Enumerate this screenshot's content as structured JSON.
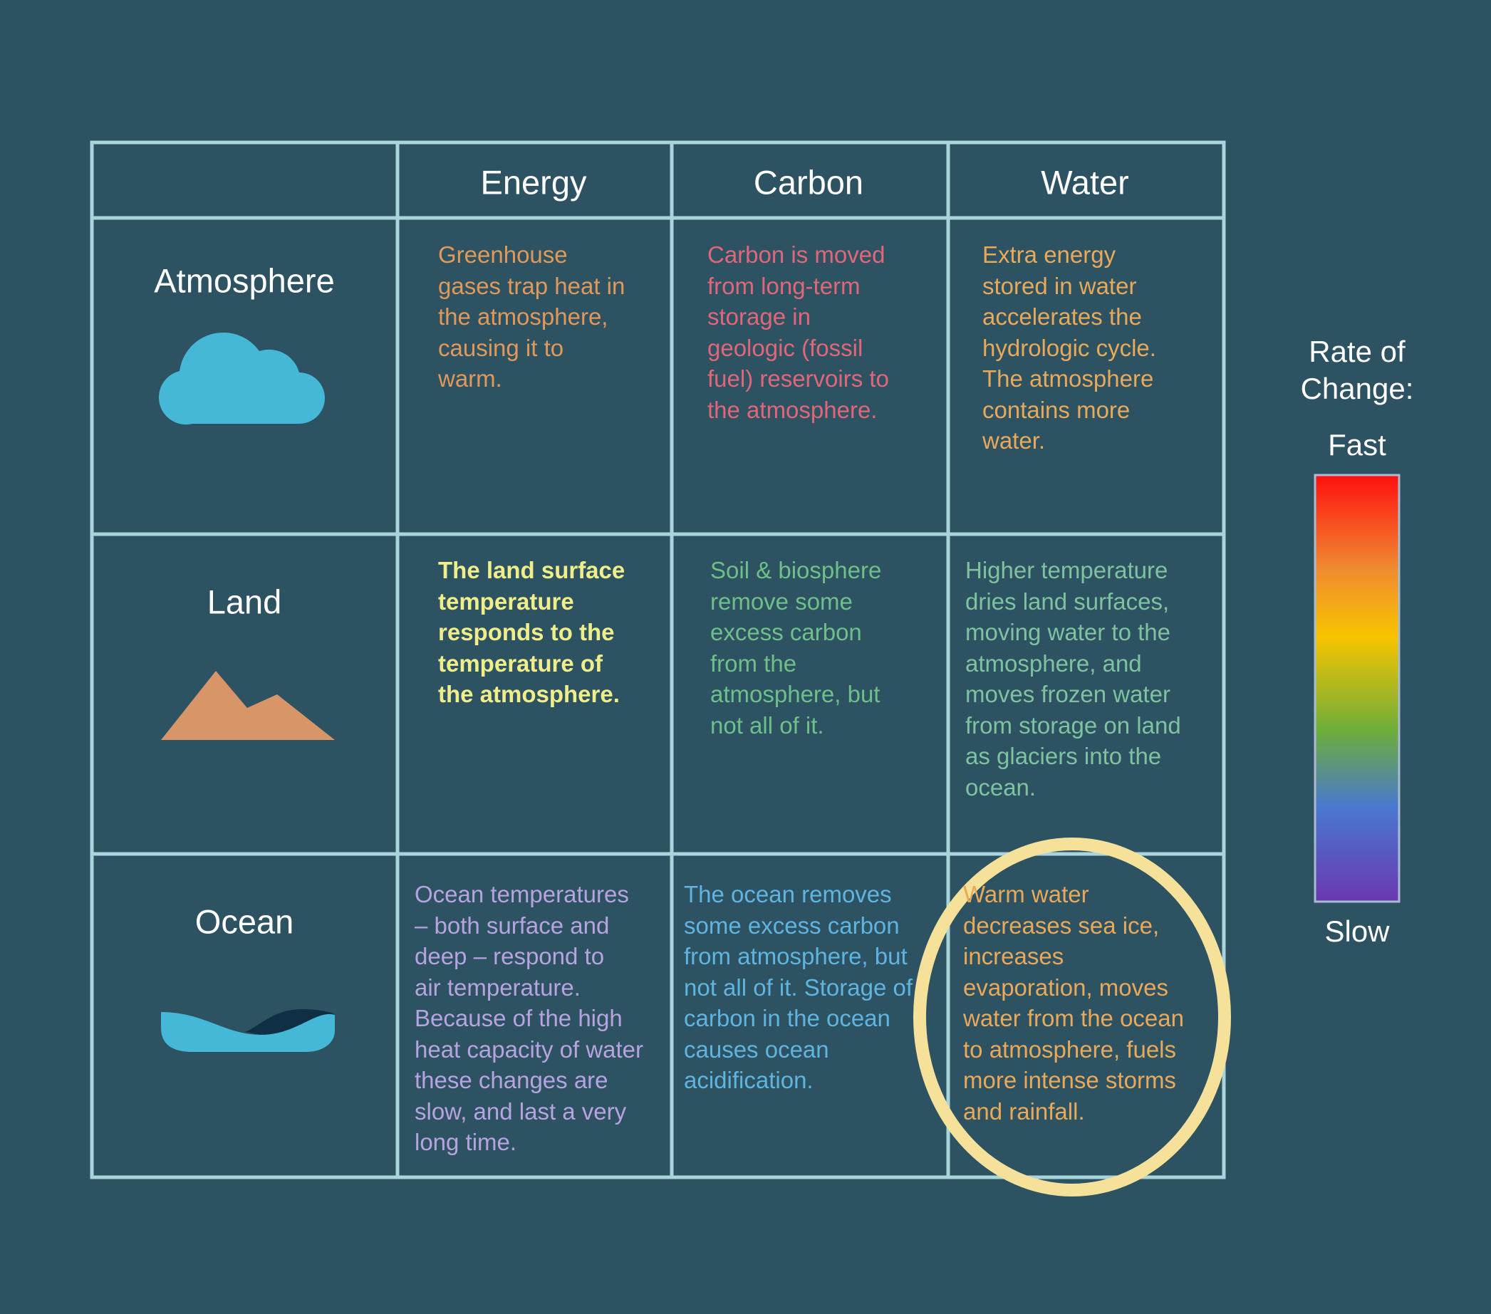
{
  "table": {
    "columns": [
      "Energy",
      "Carbon",
      "Water"
    ],
    "rows": [
      {
        "label": "Atmosphere",
        "cells": [
          "Greenhouse\ngases trap heat in\nthe atmosphere,\ncausing it to\nwarm.",
          "Carbon is moved\nfrom long-term\nstorage in\ngeologic (fossil\nfuel) reservoirs to\nthe atmosphere.",
          "Extra energy\nstored in water\naccelerates the\nhydrologic cycle.\nThe atmosphere\ncontains more\nwater."
        ]
      },
      {
        "label": "Land",
        "cells": [
          "The land surface\ntemperature\nresponds to the\ntemperature of\nthe atmosphere.",
          "Soil & biosphere\nremove some\nexcess carbon\nfrom the\natmosphere, but\nnot all of it.",
          "Higher temperature\ndries land surfaces,\nmoving water to the\natmosphere, and\nmoves frozen water\nfrom storage on land\nas glaciers into the\nocean."
        ]
      },
      {
        "label": "Ocean",
        "cells": [
          "Ocean temperatures\n– both surface and\ndeep – respond to\nair temperature.\nBecause of the high\nheat capacity of water\nthese changes are\nslow, and last a very\nlong time.",
          "The ocean removes\nsome excess carbon\nfrom atmosphere, but\nnot all of it. Storage of\ncarbon in the ocean\ncauses ocean\nacidification.",
          "Warm water\ndecreases sea ice,\nincreases\nevaporation, moves\nwater from the ocean\nto atmosphere, fuels\nmore intense storms\nand rainfall."
        ]
      }
    ]
  },
  "legend": {
    "title": "Rate of\nChange:",
    "high": "Fast",
    "low": "Slow"
  }
}
